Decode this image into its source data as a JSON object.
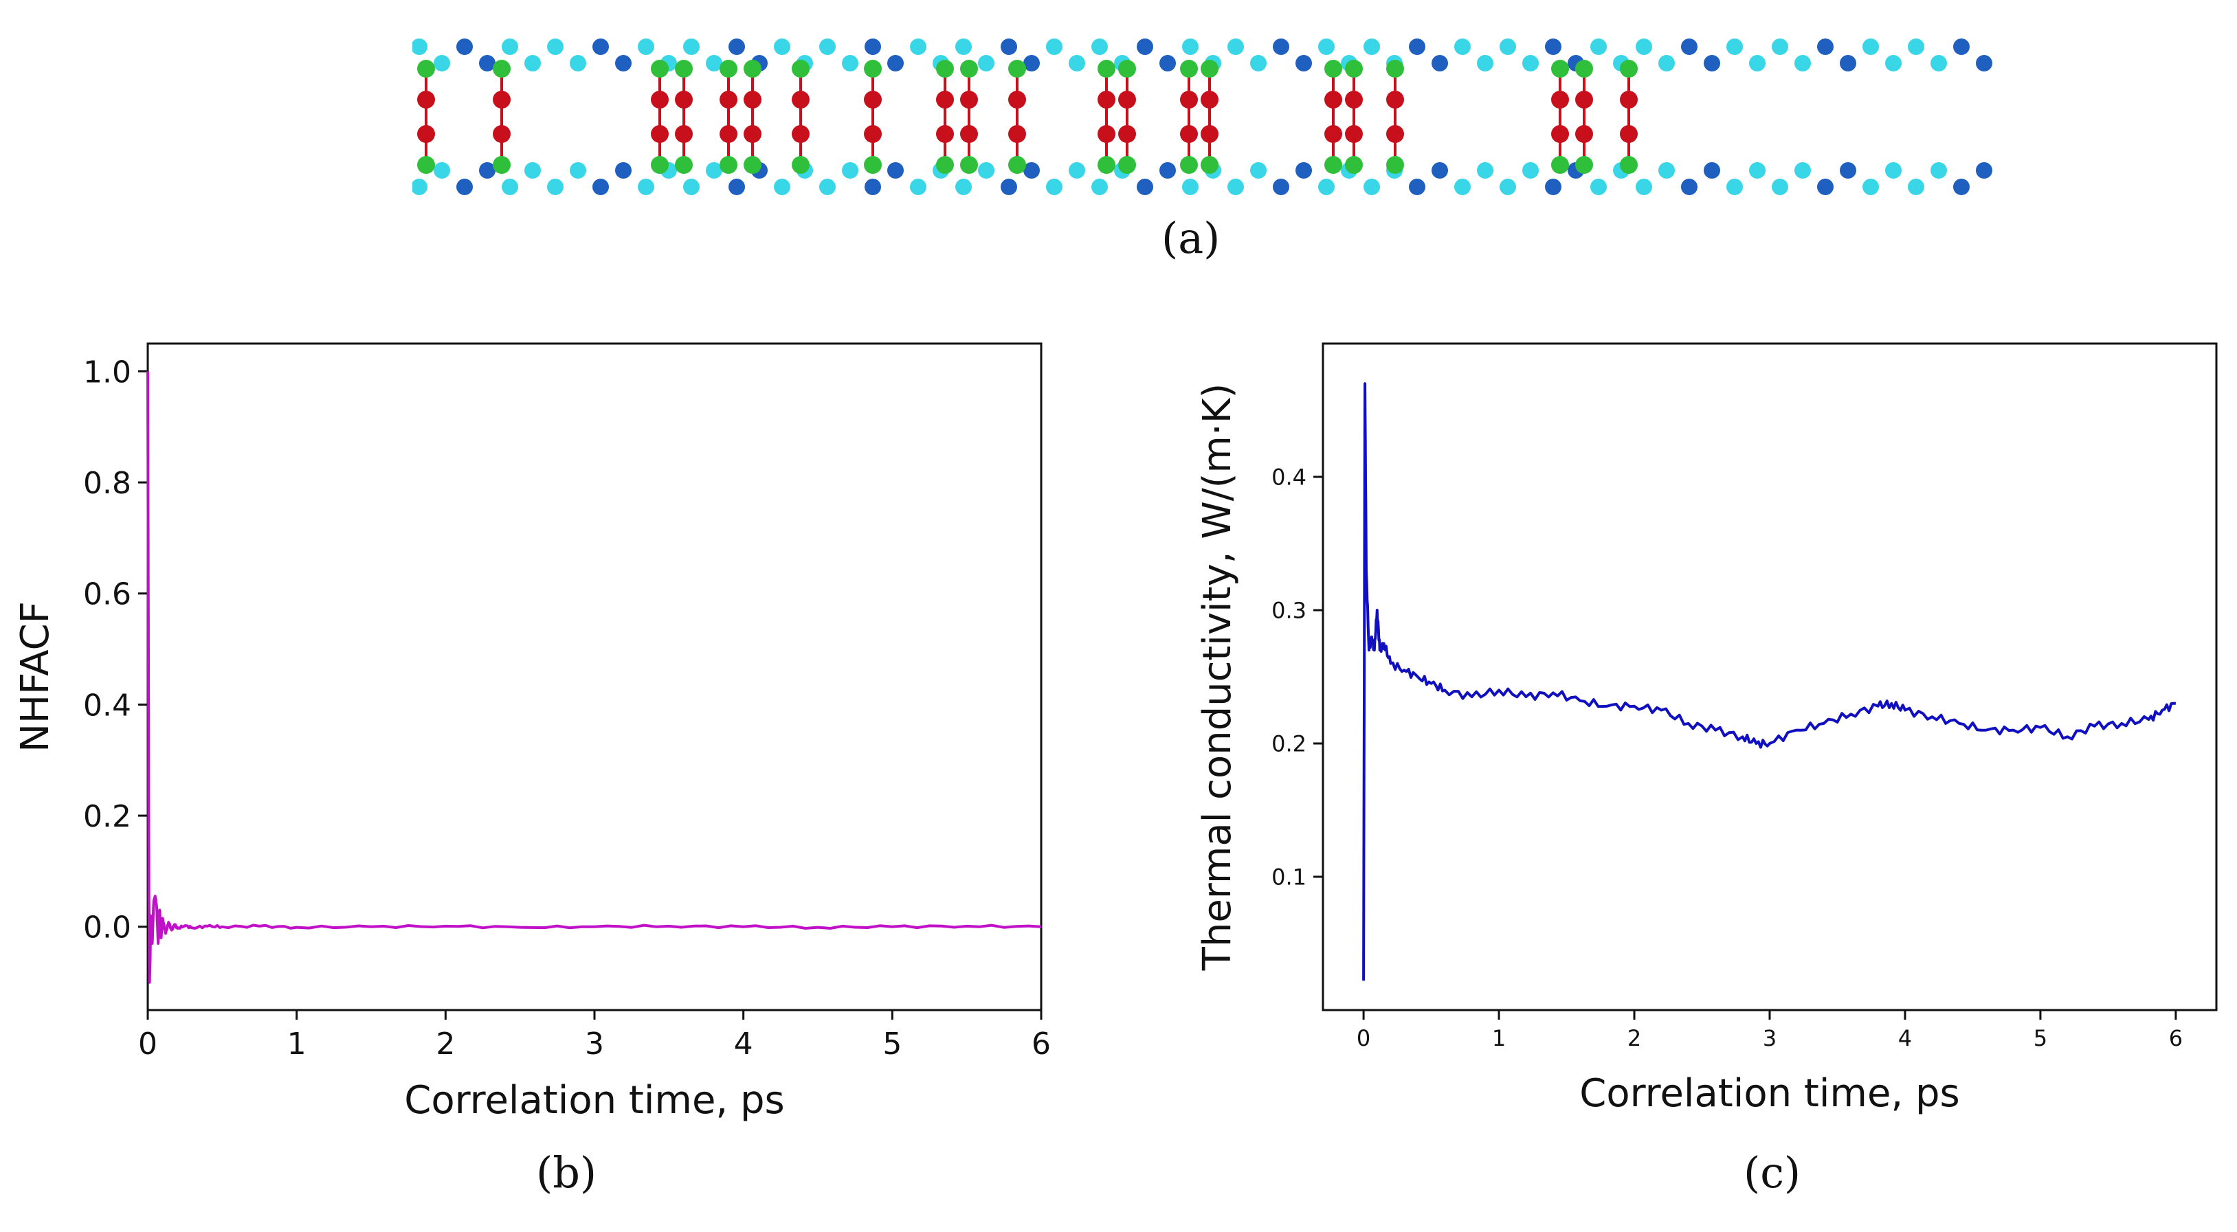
{
  "panels": {
    "a": "(a)",
    "b": "(b)",
    "c": "(c)"
  },
  "colors": {
    "atom_cyan": "#38d6e6",
    "atom_blue": "#1e5fbf",
    "atom_green": "#2fbf3a",
    "atom_red": "#c8101c",
    "nhfacf_line": "#c010c8",
    "kappa_line": "#1010c0"
  },
  "chart_data": [
    {
      "type": "line",
      "title": "",
      "xlabel": "Correlation time, ps",
      "ylabel": "NHFACF",
      "xlim": [
        0,
        6
      ],
      "ylim": [
        -0.15,
        1.05
      ],
      "xticks": [
        0,
        1,
        2,
        3,
        4,
        5,
        6
      ],
      "yticks": [
        0.0,
        0.2,
        0.4,
        0.6,
        0.8,
        1.0
      ],
      "xtick_labels": [
        "0",
        "1",
        "2",
        "3",
        "4",
        "5",
        "6"
      ],
      "ytick_labels": [
        "0.0",
        "0.2",
        "0.4",
        "0.6",
        "0.8",
        "1.0"
      ],
      "series": [
        {
          "name": "NHFACF",
          "color": "#c010c8",
          "x": [
            0,
            0.004,
            0.008,
            0.012,
            0.016,
            0.02,
            0.03,
            0.04,
            0.05,
            0.06,
            0.07,
            0.08,
            0.09,
            0.1,
            0.12,
            0.14,
            0.16,
            0.18,
            0.2,
            0.25,
            0.3,
            0.4,
            0.5,
            0.75,
            1.0,
            1.5,
            2.0,
            2.5,
            3.0,
            3.5,
            4.0,
            4.5,
            5.0,
            5.5,
            6.0
          ],
          "y": [
            1.0,
            0.55,
            0.05,
            -0.1,
            -0.06,
            0.02,
            -0.03,
            0.045,
            0.055,
            0.035,
            -0.03,
            0.03,
            -0.02,
            0.015,
            -0.012,
            0.008,
            -0.006,
            0.004,
            -0.003,
            0.002,
            -0.002,
            0.001,
            0.0,
            0.001,
            -0.001,
            0.0,
            0.001,
            -0.001,
            0.0,
            0.001,
            0.0,
            -0.001,
            0.0,
            0.001,
            0.0
          ]
        }
      ]
    },
    {
      "type": "line",
      "title": "",
      "xlabel": "Correlation time, ps",
      "ylabel": "Thermal conductivity, W/(m·K)",
      "xlim": [
        -0.3,
        6.3
      ],
      "ylim": [
        0.0,
        0.5
      ],
      "xticks": [
        0,
        1,
        2,
        3,
        4,
        5,
        6
      ],
      "yticks": [
        0.1,
        0.2,
        0.3,
        0.4
      ],
      "xtick_labels": [
        "0",
        "1",
        "2",
        "3",
        "4",
        "5",
        "6"
      ],
      "ytick_labels": [
        "0.1",
        "0.2",
        "0.3",
        "0.4"
      ],
      "series": [
        {
          "name": "Thermal conductivity",
          "color": "#1010c0",
          "x": [
            0,
            0.01,
            0.02,
            0.04,
            0.06,
            0.08,
            0.1,
            0.12,
            0.15,
            0.2,
            0.3,
            0.4,
            0.5,
            0.6,
            0.8,
            1.0,
            1.2,
            1.4,
            1.6,
            1.8,
            2.0,
            2.2,
            2.4,
            2.6,
            2.8,
            2.9,
            3.0,
            3.2,
            3.4,
            3.6,
            3.8,
            3.9,
            4.0,
            4.2,
            4.4,
            4.6,
            4.8,
            5.0,
            5.2,
            5.4,
            5.6,
            5.8,
            5.9,
            6.0
          ],
          "y": [
            0.022,
            0.47,
            0.33,
            0.27,
            0.28,
            0.27,
            0.3,
            0.27,
            0.275,
            0.26,
            0.255,
            0.25,
            0.245,
            0.24,
            0.235,
            0.24,
            0.235,
            0.238,
            0.232,
            0.228,
            0.228,
            0.225,
            0.215,
            0.21,
            0.205,
            0.2,
            0.2,
            0.21,
            0.215,
            0.222,
            0.228,
            0.23,
            0.225,
            0.22,
            0.215,
            0.21,
            0.21,
            0.212,
            0.205,
            0.213,
            0.215,
            0.218,
            0.225,
            0.23
          ]
        }
      ]
    }
  ]
}
